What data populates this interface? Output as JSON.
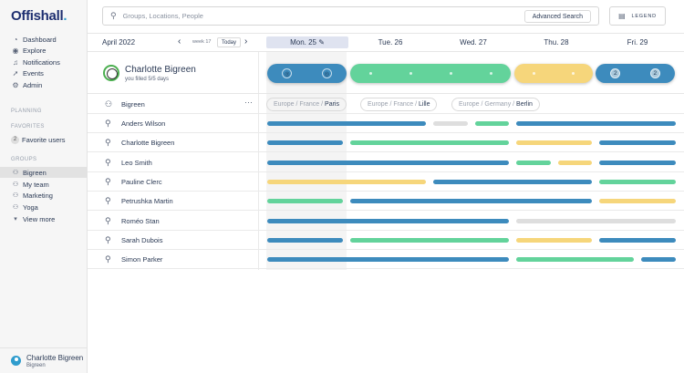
{
  "app": {
    "logo": "Offishall",
    "logo_dot": "."
  },
  "colors": {
    "blue": "#3d8bbd",
    "green": "#63d39b",
    "yellow": "#f6d67b",
    "gray": "#dedede",
    "navy": "#1e2f70"
  },
  "nav": [
    {
      "label": "Dashboard",
      "icon": "dashboard-icon"
    },
    {
      "label": "Explore",
      "icon": "compass-icon"
    },
    {
      "label": "Notifications",
      "icon": "bell-icon"
    },
    {
      "label": "Events",
      "icon": "rocket-icon"
    },
    {
      "label": "Admin",
      "icon": "gear-icon"
    }
  ],
  "sidebar": {
    "planning_label": "PLANNING",
    "favorites_label": "FAVORITES",
    "favorite_users": {
      "count": "2",
      "label": "Favorite users"
    },
    "groups_label": "GROUPS",
    "groups": [
      "Bigreen",
      "My team",
      "Marketing",
      "Yoga"
    ],
    "view_more": "View more",
    "profile": {
      "name": "Charlotte Bigreen",
      "team": "Bigreen"
    }
  },
  "topbar": {
    "search_placeholder": "Groups, Locations, People",
    "advanced_search": "Advanced Search",
    "legend": "LEGEND"
  },
  "calendar": {
    "month": "April 2022",
    "week": "week 17",
    "today_button": "Today",
    "days": [
      "Mon. 25",
      "Tue. 26",
      "Wed. 27",
      "Thu. 28",
      "Fri. 29"
    ],
    "today_index": 0
  },
  "me": {
    "name": "Charlotte Bigreen",
    "subtitle": "you filled 5/5 days",
    "fri_count_am": "2",
    "fri_count_pm": "2"
  },
  "group_row": {
    "name": "Bigreen",
    "more": "···",
    "locations": [
      {
        "prefix": "Europe / France / ",
        "city": "Paris"
      },
      {
        "prefix": "Europe / France / ",
        "city": "Lille"
      },
      {
        "prefix": "Europe / Germany / ",
        "city": "Berlin"
      }
    ]
  },
  "people": [
    "Anders Wilson",
    "Charlotte Bigreen",
    "Leo Smith",
    "Pauline Clerc",
    "Petrushka Martin",
    "Roméo Stan",
    "Sarah Dubois",
    "Simon Parker"
  ]
}
